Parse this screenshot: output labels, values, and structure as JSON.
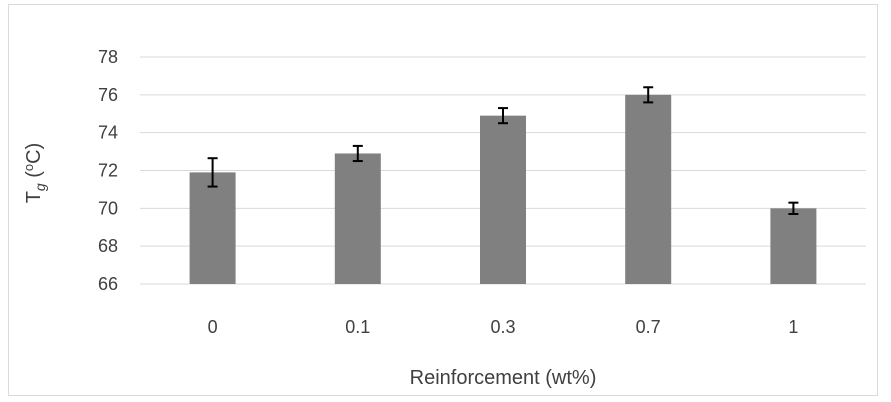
{
  "chart_data": {
    "type": "bar",
    "categories": [
      "0",
      "0.1",
      "0.3",
      "0.7",
      "1"
    ],
    "series": [
      {
        "values": [
          71.9,
          72.9,
          74.9,
          76.0,
          70.0
        ],
        "errors": [
          0.75,
          0.4,
          0.4,
          0.4,
          0.3
        ],
        "color": "#808080"
      }
    ],
    "xlabel": "Reinforcement (wt%)",
    "ylabel": {
      "main": "T",
      "subscript": "g",
      "unit_open": " (",
      "unit_sup": "o",
      "unit_close": "C)"
    },
    "ylim": [
      66,
      78
    ],
    "yticks": [
      "66",
      "68",
      "70",
      "72",
      "74",
      "76",
      "78"
    ],
    "grid": true,
    "gridline_color": "#d9d9d9",
    "errorbar_color": "#000000"
  }
}
